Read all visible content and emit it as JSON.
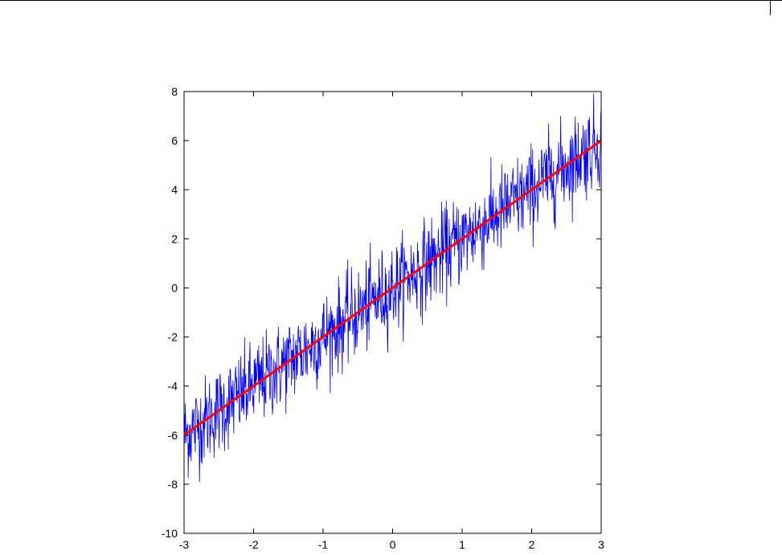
{
  "page": {
    "colors": {
      "background": "#ffffff",
      "axis": "#000000",
      "noise_series": "#0000ff",
      "fit_line": "#ff0000"
    }
  },
  "chart_data": {
    "type": "line",
    "title": "",
    "xlabel": "",
    "ylabel": "",
    "xlim": [
      -3,
      3
    ],
    "ylim": [
      -10,
      8
    ],
    "x_ticks": [
      "-3",
      "-2",
      "-1",
      "0",
      "1",
      "2",
      "3"
    ],
    "y_ticks": [
      "8",
      "6",
      "4",
      "2",
      "0",
      "-2",
      "-4",
      "-6",
      "-8",
      "-10"
    ],
    "grid": false,
    "legend": "none",
    "series": [
      {
        "style": "noisy-line",
        "color": "#0000ff",
        "trend_slope": 2,
        "trend_intercept": 0,
        "noise_range": [
          -2.5,
          2.5
        ],
        "num_points": 1000
      },
      {
        "style": "fit-line",
        "color": "#ff0000",
        "x": [
          -3,
          3
        ],
        "y": [
          -6,
          6
        ]
      }
    ]
  }
}
